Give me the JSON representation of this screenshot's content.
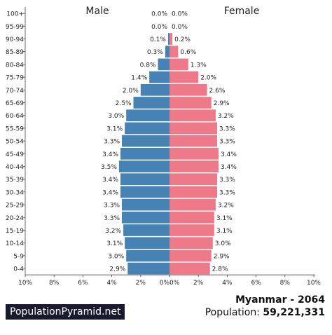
{
  "chart_data": {
    "type": "bar",
    "title": "Myanmar - 2064",
    "male_label": "Male",
    "female_label": "Female",
    "categories": [
      "100+",
      "95-99",
      "90-94",
      "85-89",
      "80-84",
      "75-79",
      "70-74",
      "65-69",
      "60-64",
      "55-59",
      "50-54",
      "45-49",
      "40-44",
      "35-39",
      "30-34",
      "25-29",
      "20-24",
      "15-19",
      "10-14",
      "5-9",
      "0-4"
    ],
    "series": [
      {
        "name": "Male",
        "color": "#4682b4",
        "values": [
          0.0,
          0.0,
          0.1,
          0.3,
          0.8,
          1.4,
          2.0,
          2.5,
          3.0,
          3.1,
          3.3,
          3.4,
          3.5,
          3.4,
          3.4,
          3.3,
          3.3,
          3.2,
          3.1,
          3.0,
          2.9
        ]
      },
      {
        "name": "Female",
        "color": "#ee7989",
        "values": [
          0.0,
          0.0,
          0.2,
          0.6,
          1.3,
          2.0,
          2.6,
          2.9,
          3.2,
          3.3,
          3.3,
          3.4,
          3.4,
          3.3,
          3.3,
          3.2,
          3.1,
          3.1,
          3.0,
          2.9,
          2.8
        ]
      }
    ],
    "xlim": [
      -10,
      10
    ],
    "x_ticks": [
      "10%",
      "8%",
      "6%",
      "4%",
      "2%",
      "0%",
      "0%",
      "2%",
      "4%",
      "6%",
      "8%",
      "10%"
    ],
    "grid": false
  },
  "footer": {
    "brand": "PopulationPyramid.net",
    "country_year": "Myanmar - 2064",
    "population_label": "Population:",
    "population_value": "59,221,331"
  }
}
